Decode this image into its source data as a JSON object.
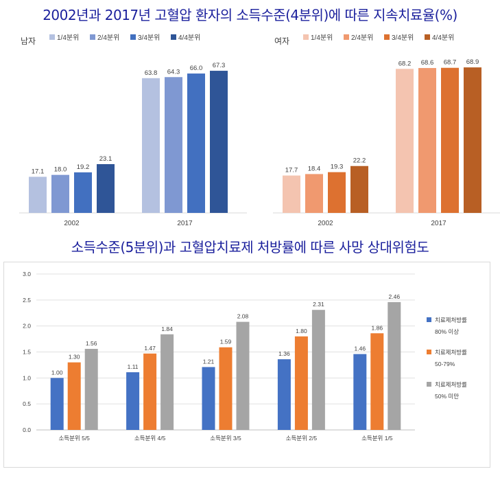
{
  "titles": {
    "top": "2002년과 2017년 고혈압 환자의 소득수준(4분위)에 따른 지속치료율(%)",
    "middle": "소득수준(5분위)과 고혈압치료제 처방률에 따른 사망 상대위험도"
  },
  "chart_data": [
    {
      "type": "bar",
      "panel_label": "남자",
      "categories": [
        "2002",
        "2017"
      ],
      "series": [
        {
          "name": "1/4분위",
          "values": [
            17.1,
            63.8
          ],
          "color": "#b4c1e0"
        },
        {
          "name": "2/4분위",
          "values": [
            18.0,
            64.3
          ],
          "color": "#7f98d2"
        },
        {
          "name": "3/4분위",
          "values": [
            19.2,
            66.0
          ],
          "color": "#4270c0"
        },
        {
          "name": "4/4분위",
          "values": [
            23.1,
            67.3
          ],
          "color": "#2f5597"
        }
      ],
      "value_labels": [
        [
          "17.1",
          "63.8"
        ],
        [
          "18.0",
          "64.3"
        ],
        [
          "19.2",
          "66.0"
        ],
        [
          "23.1",
          "67.3"
        ]
      ],
      "ylim": [
        0,
        80
      ],
      "legend": "top"
    },
    {
      "type": "bar",
      "panel_label": "여자",
      "categories": [
        "2002",
        "2017"
      ],
      "series": [
        {
          "name": "1/4분위",
          "values": [
            17.7,
            68.2
          ],
          "color": "#f4c4b0"
        },
        {
          "name": "2/4분위",
          "values": [
            18.4,
            68.6
          ],
          "color": "#f0996f"
        },
        {
          "name": "3/4분위",
          "values": [
            19.3,
            68.7
          ],
          "color": "#dd7130"
        },
        {
          "name": "4/4분위",
          "values": [
            22.2,
            68.9
          ],
          "color": "#b85f24"
        }
      ],
      "value_labels": [
        [
          "17.7",
          "68.2"
        ],
        [
          "18.4",
          "68.6"
        ],
        [
          "19.3",
          "68.7"
        ],
        [
          "22.2",
          "68.9"
        ]
      ],
      "ylim": [
        0,
        80
      ],
      "legend": "top"
    },
    {
      "type": "bar",
      "categories": [
        "소득분위 5/5",
        "소득분위 4/5",
        "소득분위 3/5",
        "소득분위 2/5",
        "소득분위 1/5"
      ],
      "series": [
        {
          "name": "치료제처방률",
          "sub": "80% 이상",
          "values": [
            1.0,
            1.11,
            1.21,
            1.36,
            1.46
          ],
          "color": "#4472c4"
        },
        {
          "name": "치료제처방률",
          "sub": "50-79%",
          "values": [
            1.3,
            1.47,
            1.59,
            1.8,
            1.86
          ],
          "color": "#ed7d31"
        },
        {
          "name": "치료제처방률",
          "sub": "50% 미만",
          "values": [
            1.56,
            1.84,
            2.08,
            2.31,
            2.46
          ],
          "color": "#a5a5a5"
        }
      ],
      "value_labels": [
        [
          "1.00",
          "1.11",
          "1.21",
          "1.36",
          "1.46"
        ],
        [
          "1.30",
          "1.47",
          "1.59",
          "1.80",
          "1.86"
        ],
        [
          "1.56",
          "1.84",
          "2.08",
          "2.31",
          "2.46"
        ]
      ],
      "ylim": [
        0,
        3.0
      ],
      "yticks": [
        "0.0",
        "0.5",
        "1.0",
        "1.5",
        "2.0",
        "2.5",
        "3.0"
      ],
      "grid": true,
      "legend": "right"
    }
  ]
}
